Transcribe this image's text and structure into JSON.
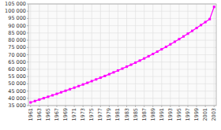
{
  "chart_data": {
    "type": "line",
    "x": [
      1961,
      1962,
      1963,
      1964,
      1965,
      1966,
      1967,
      1968,
      1969,
      1970,
      1971,
      1972,
      1973,
      1974,
      1975,
      1976,
      1977,
      1978,
      1979,
      1980,
      1981,
      1982,
      1983,
      1984,
      1985,
      1986,
      1987,
      1988,
      1989,
      1990,
      1991,
      1992,
      1993,
      1994,
      1995,
      1996,
      1997,
      1998,
      1999,
      2000,
      2001,
      2002,
      2003
    ],
    "values": [
      37172,
      38124,
      39113,
      40091,
      41075,
      42082,
      43106,
      44151,
      45209,
      46273,
      47344,
      48432,
      49545,
      50685,
      51847,
      53024,
      54207,
      55399,
      56619,
      57874,
      59158,
      60467,
      61803,
      63167,
      64559,
      65989,
      67462,
      68977,
      70534,
      72132,
      73773,
      75455,
      77182,
      78955,
      80772,
      82632,
      84535,
      86476,
      88448,
      90451,
      92485,
      94550,
      103000
    ],
    "color": "#ff00ff",
    "marker": "square",
    "xlim": [
      1960.5,
      2003.5
    ],
    "xticks": [
      1961,
      1963,
      1965,
      1967,
      1969,
      1971,
      1973,
      1975,
      1977,
      1979,
      1981,
      1983,
      1985,
      1987,
      1989,
      1991,
      1993,
      1995,
      1997,
      1999,
      2001,
      2003
    ],
    "ylim": [
      35000,
      105000
    ],
    "yticks": [
      {
        "value": 35000,
        "label": "35 000"
      },
      {
        "value": 40000,
        "label": "40 000"
      },
      {
        "value": 45000,
        "label": "45 000"
      },
      {
        "value": 50000,
        "label": "50 000"
      },
      {
        "value": 55000,
        "label": "55 000"
      },
      {
        "value": 60000,
        "label": "60 000"
      },
      {
        "value": 65000,
        "label": "65 000"
      },
      {
        "value": 70000,
        "label": "70 000"
      },
      {
        "value": 75000,
        "label": "75 000"
      },
      {
        "value": 80000,
        "label": "80 000"
      },
      {
        "value": 85000,
        "label": "85 000"
      },
      {
        "value": 90000,
        "label": "90 000"
      },
      {
        "value": 95000,
        "label": "95 000"
      },
      {
        "value": 100000,
        "label": "100 000"
      },
      {
        "value": 105000,
        "label": "105 000"
      }
    ],
    "grid": true
  }
}
